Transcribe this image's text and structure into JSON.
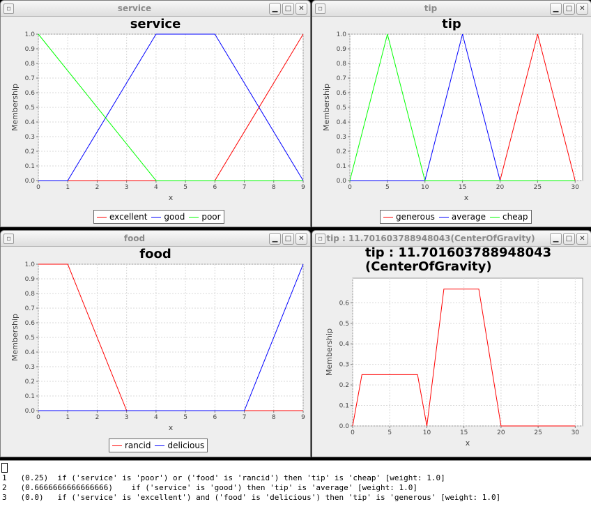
{
  "windows": [
    {
      "id": "service",
      "title": "service",
      "plot_title": "service",
      "legend": [
        {
          "label": "excellent",
          "color": "#ff0000"
        },
        {
          "label": "good",
          "color": "#0000ff"
        },
        {
          "label": "poor",
          "color": "#00ff00"
        }
      ]
    },
    {
      "id": "tip",
      "title": "tip",
      "plot_title": "tip",
      "legend": [
        {
          "label": "generous",
          "color": "#ff0000"
        },
        {
          "label": "average",
          "color": "#0000ff"
        },
        {
          "label": "cheap",
          "color": "#00ff00"
        }
      ]
    },
    {
      "id": "food",
      "title": "food",
      "plot_title": "food",
      "legend": [
        {
          "label": "rancid",
          "color": "#ff0000"
        },
        {
          "label": "delicious",
          "color": "#0000ff"
        }
      ]
    },
    {
      "id": "result",
      "title": "tip : 11.701603788948043(CenterOfGravity)",
      "plot_title_line1": "tip : 11.701603788948043",
      "plot_title_line2": "(CenterOfGravity)"
    }
  ],
  "window_buttons": {
    "icon": "window-menu-icon",
    "minimize": "minimize-icon",
    "maximize": "maximize-icon",
    "close": "close-icon"
  },
  "chart_data": [
    {
      "type": "line",
      "title": "service",
      "xlabel": "x",
      "ylabel": "Membership",
      "xlim": [
        0,
        9
      ],
      "ylim": [
        0,
        1
      ],
      "xticks": [
        "0",
        "1",
        "2",
        "3",
        "4",
        "5",
        "6",
        "7",
        "8",
        "9"
      ],
      "yticks": [
        "0.0",
        "0.1",
        "0.2",
        "0.3",
        "0.4",
        "0.5",
        "0.6",
        "0.7",
        "0.8",
        "0.9",
        "1.0"
      ],
      "grid": true,
      "legend_position": "bottom",
      "series": [
        {
          "name": "excellent",
          "color": "#ff0000",
          "x": [
            0,
            6,
            9
          ],
          "y": [
            0,
            0,
            1
          ]
        },
        {
          "name": "good",
          "color": "#0000ff",
          "x": [
            0,
            1,
            4,
            6,
            9
          ],
          "y": [
            0,
            0,
            1,
            1,
            0
          ]
        },
        {
          "name": "poor",
          "color": "#00ff00",
          "x": [
            0,
            4,
            9
          ],
          "y": [
            1,
            0,
            0
          ]
        }
      ]
    },
    {
      "type": "line",
      "title": "tip",
      "xlabel": "x",
      "ylabel": "Membership",
      "xlim": [
        0,
        31
      ],
      "ylim": [
        0,
        1
      ],
      "xticks": [
        "0",
        "5",
        "10",
        "15",
        "20",
        "25",
        "30"
      ],
      "yticks": [
        "0.0",
        "0.1",
        "0.2",
        "0.3",
        "0.4",
        "0.5",
        "0.6",
        "0.7",
        "0.8",
        "0.9",
        "1.0"
      ],
      "grid": true,
      "legend_position": "bottom",
      "series": [
        {
          "name": "generous",
          "color": "#ff0000",
          "x": [
            0,
            20,
            25,
            30
          ],
          "y": [
            0,
            0,
            1,
            0
          ]
        },
        {
          "name": "average",
          "color": "#0000ff",
          "x": [
            0,
            10,
            15,
            20,
            30
          ],
          "y": [
            0,
            0,
            1,
            0,
            0
          ]
        },
        {
          "name": "cheap",
          "color": "#00ff00",
          "x": [
            0,
            5,
            10,
            30
          ],
          "y": [
            0,
            1,
            0,
            0
          ]
        }
      ]
    },
    {
      "type": "line",
      "title": "food",
      "xlabel": "x",
      "ylabel": "Membership",
      "xlim": [
        0,
        9
      ],
      "ylim": [
        0,
        1
      ],
      "xticks": [
        "0",
        "1",
        "2",
        "3",
        "4",
        "5",
        "6",
        "7",
        "8",
        "9"
      ],
      "yticks": [
        "0.0",
        "0.1",
        "0.2",
        "0.3",
        "0.4",
        "0.5",
        "0.6",
        "0.7",
        "0.8",
        "0.9",
        "1.0"
      ],
      "grid": true,
      "legend_position": "bottom",
      "series": [
        {
          "name": "rancid",
          "color": "#ff0000",
          "x": [
            0,
            1,
            3,
            9
          ],
          "y": [
            1,
            1,
            0,
            0
          ]
        },
        {
          "name": "delicious",
          "color": "#0000ff",
          "x": [
            0,
            7,
            9
          ],
          "y": [
            0,
            0,
            1
          ]
        }
      ]
    },
    {
      "type": "line",
      "title": "tip : 11.701603788948043 (CenterOfGravity)",
      "xlabel": "x",
      "ylabel": "Membership",
      "xlim": [
        0,
        31
      ],
      "ylim": [
        0,
        0.72
      ],
      "xticks": [
        "0",
        "5",
        "10",
        "15",
        "20",
        "25",
        "30"
      ],
      "yticks": [
        "0.0",
        "0.1",
        "0.2",
        "0.3",
        "0.4",
        "0.5",
        "0.6"
      ],
      "grid": true,
      "series": [
        {
          "color": "#ff0000",
          "x": [
            0,
            1.25,
            8.75,
            10,
            12.3,
            14.7,
            17.0,
            20,
            30
          ],
          "y": [
            0,
            0.25,
            0.25,
            0,
            0.667,
            0.667,
            0.667,
            0,
            0
          ]
        }
      ]
    }
  ],
  "console": {
    "lines": [
      {
        "num": "1",
        "text": "(0.25)  if ('service' is 'poor') or ('food' is 'rancid') then 'tip' is 'cheap' [weight: 1.0]"
      },
      {
        "num": "2",
        "text": "(0.6666666666666666)    if ('service' is 'good') then 'tip' is 'average' [weight: 1.0]"
      },
      {
        "num": "3",
        "text": "(0.0)   if ('service' is 'excellent') and ('food' is 'delicious') then 'tip' is 'generous' [weight: 1.0]"
      }
    ]
  }
}
